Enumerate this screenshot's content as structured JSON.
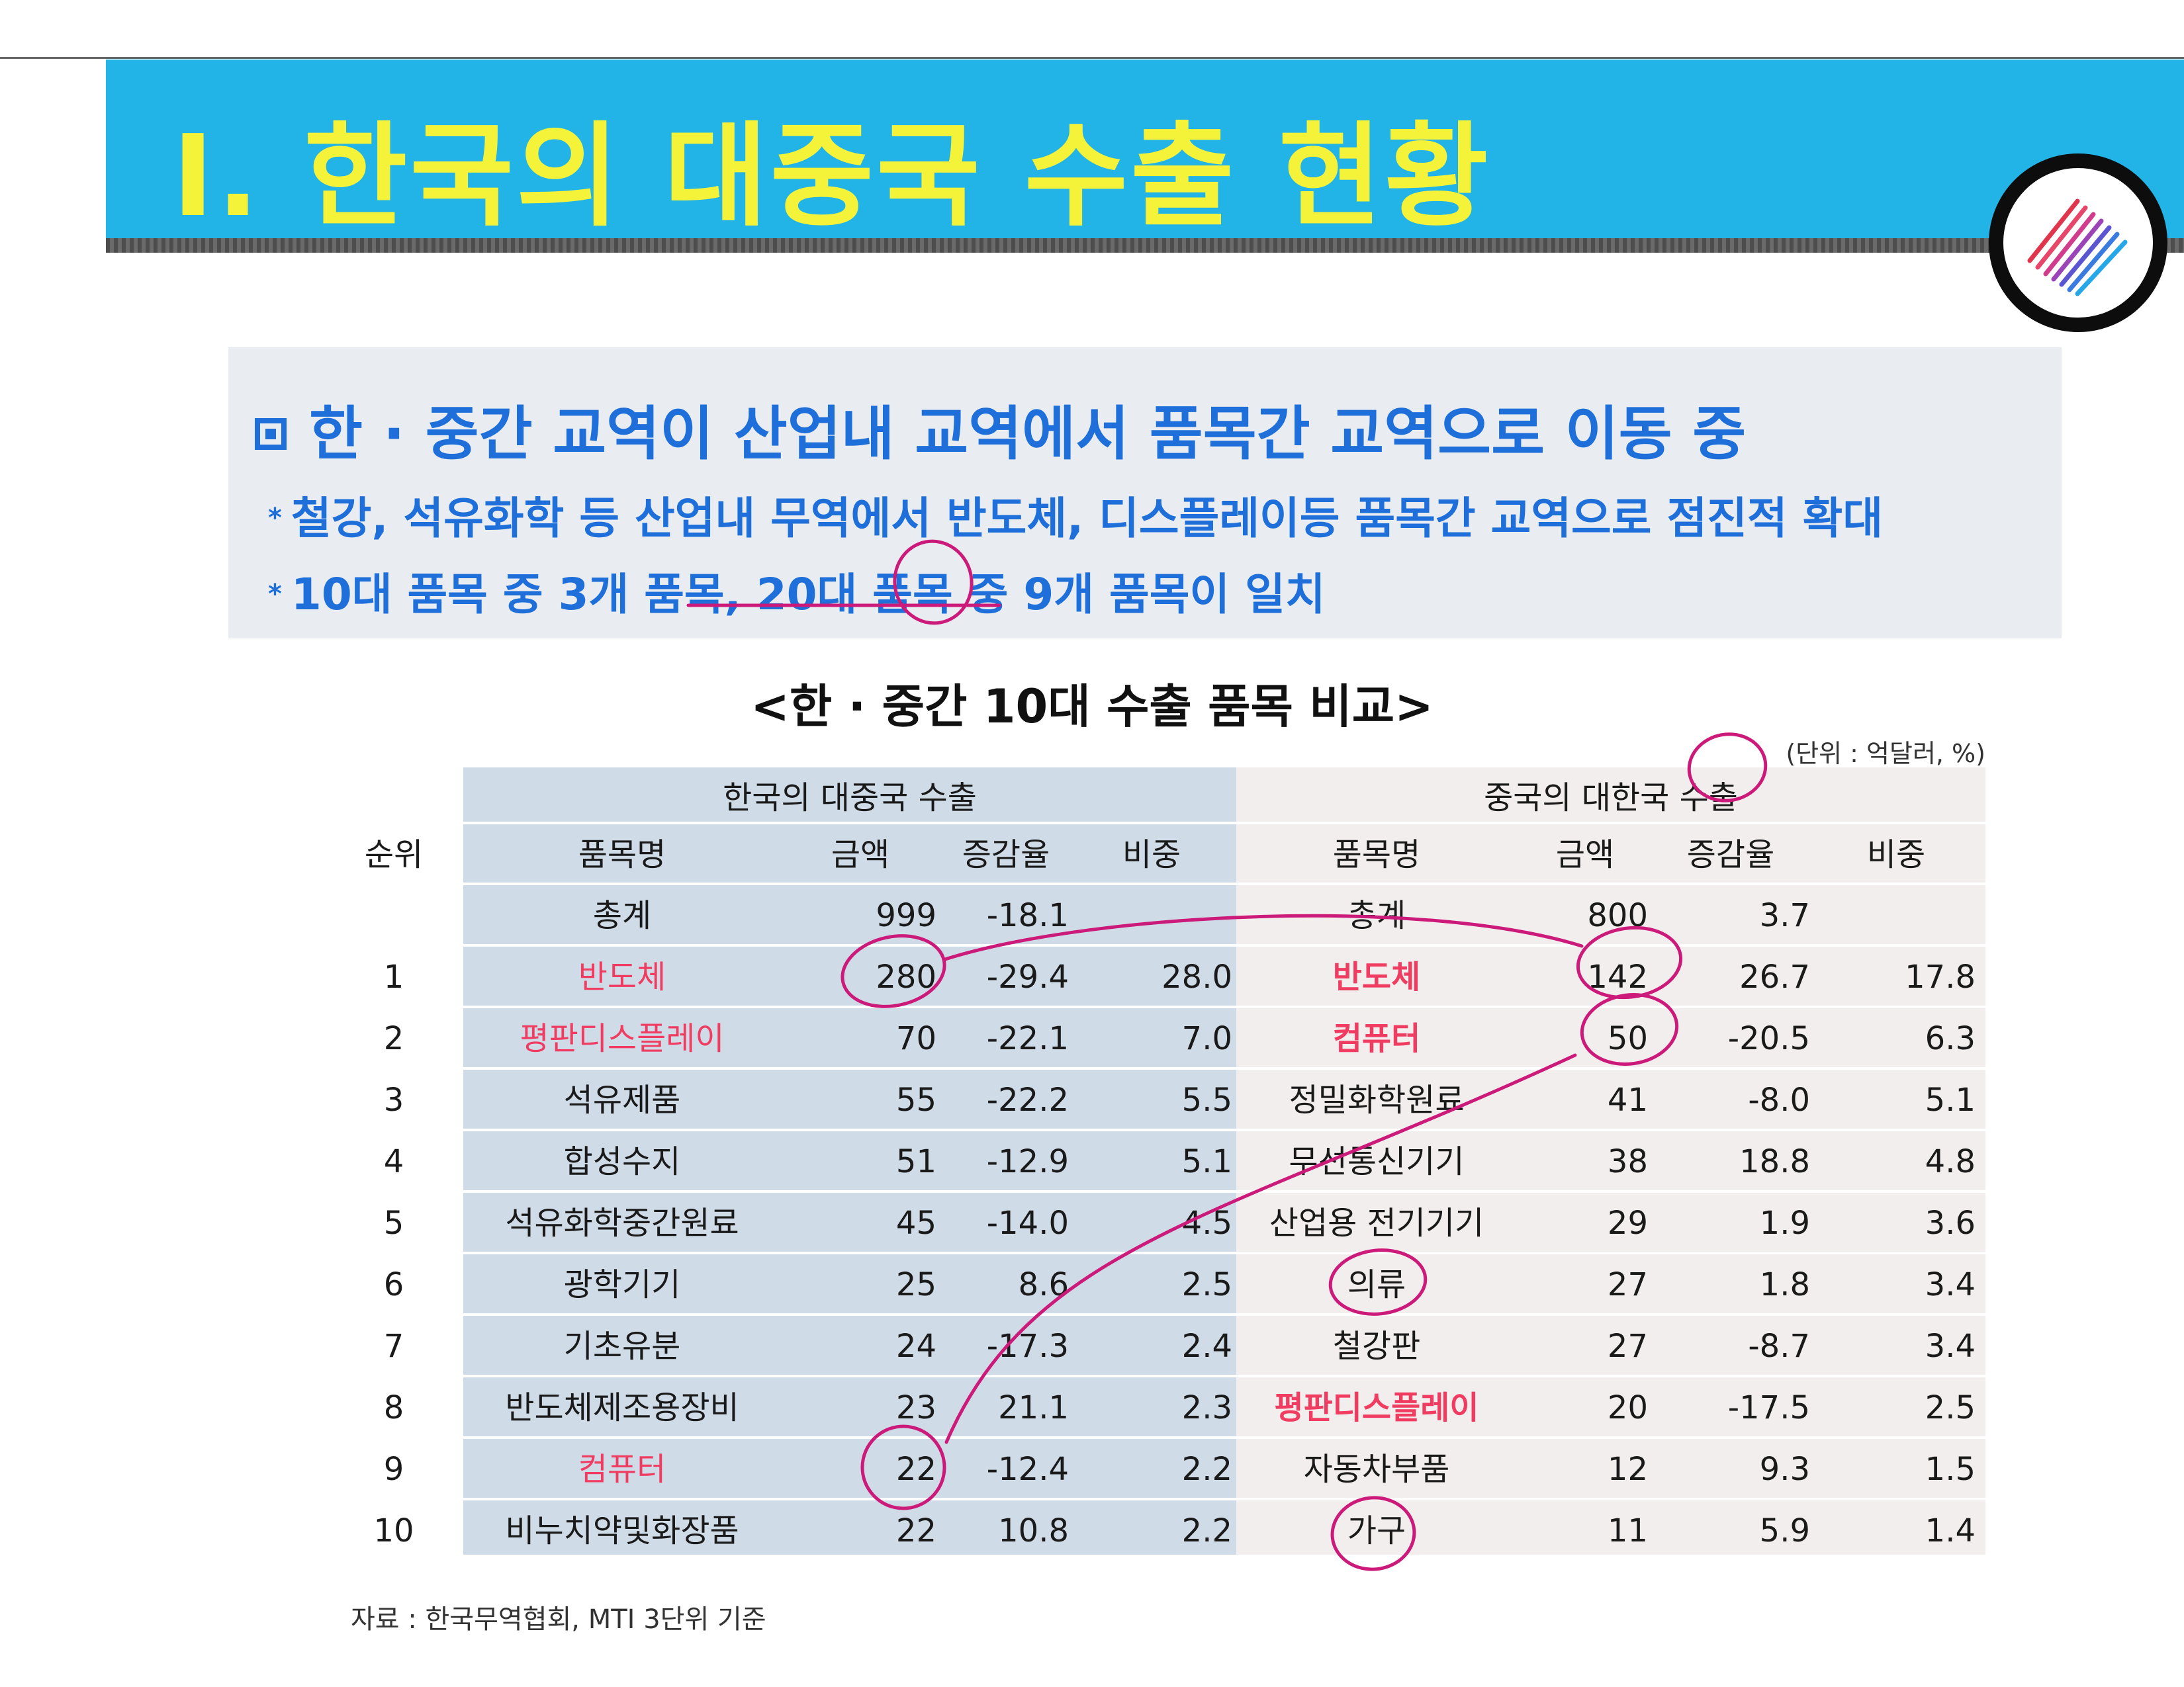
{
  "header": {
    "title": "Ⅰ. 한국의 대중국 수출 현황"
  },
  "summary": {
    "heading": "한 · 중간 교역이 산업내 교역에서 품목간 교역으로 이동 중",
    "bullets": [
      "철강, 석유화학 등 산업내 무역에서 반도체, 디스플레이등 품목간 교역으로 점진적 확대",
      "10대 품목 중 3개 품목, 20대 품목 중 9개 품목이 일치"
    ]
  },
  "table": {
    "title": "<한 · 중간 10대 수출 품목 비교>",
    "unit": "(단위 : 억달러, %)",
    "group_kr": "한국의 대중국 수출",
    "group_cn": "중국의 대한국 수출",
    "headers": {
      "rank": "순위",
      "name": "품목명",
      "amount": "금액",
      "change": "증감율",
      "share": "비중"
    },
    "rows": [
      {
        "rank": "",
        "kr": {
          "name": "총계",
          "amount": "999",
          "change": "-18.1",
          "share": ""
        },
        "cn": {
          "name": "총계",
          "amount": "800",
          "change": "3.7",
          "share": ""
        }
      },
      {
        "rank": "1",
        "kr": {
          "name": "반도체",
          "amount": "280",
          "change": "-29.4",
          "share": "28.0"
        },
        "cn": {
          "name": "반도체",
          "amount": "142",
          "change": "26.7",
          "share": "17.8"
        }
      },
      {
        "rank": "2",
        "kr": {
          "name": "평판디스플레이",
          "amount": "70",
          "change": "-22.1",
          "share": "7.0"
        },
        "cn": {
          "name": "컴퓨터",
          "amount": "50",
          "change": "-20.5",
          "share": "6.3"
        }
      },
      {
        "rank": "3",
        "kr": {
          "name": "석유제품",
          "amount": "55",
          "change": "-22.2",
          "share": "5.5"
        },
        "cn": {
          "name": "정밀화학원료",
          "amount": "41",
          "change": "-8.0",
          "share": "5.1"
        }
      },
      {
        "rank": "4",
        "kr": {
          "name": "합성수지",
          "amount": "51",
          "change": "-12.9",
          "share": "5.1"
        },
        "cn": {
          "name": "무선통신기기",
          "amount": "38",
          "change": "18.8",
          "share": "4.8"
        }
      },
      {
        "rank": "5",
        "kr": {
          "name": "석유화학중간원료",
          "amount": "45",
          "change": "-14.0",
          "share": "4.5"
        },
        "cn": {
          "name": "산업용 전기기기",
          "amount": "29",
          "change": "1.9",
          "share": "3.6"
        }
      },
      {
        "rank": "6",
        "kr": {
          "name": "광학기기",
          "amount": "25",
          "change": "8.6",
          "share": "2.5"
        },
        "cn": {
          "name": "의류",
          "amount": "27",
          "change": "1.8",
          "share": "3.4"
        }
      },
      {
        "rank": "7",
        "kr": {
          "name": "기초유분",
          "amount": "24",
          "change": "-17.3",
          "share": "2.4"
        },
        "cn": {
          "name": "철강판",
          "amount": "27",
          "change": "-8.7",
          "share": "3.4"
        }
      },
      {
        "rank": "8",
        "kr": {
          "name": "반도체제조용장비",
          "amount": "23",
          "change": "21.1",
          "share": "2.3"
        },
        "cn": {
          "name": "평판디스플레이",
          "amount": "20",
          "change": "-17.5",
          "share": "2.5"
        }
      },
      {
        "rank": "9",
        "kr": {
          "name": "컴퓨터",
          "amount": "22",
          "change": "-12.4",
          "share": "2.2"
        },
        "cn": {
          "name": "자동차부품",
          "amount": "12",
          "change": "9.3",
          "share": "1.5"
        }
      },
      {
        "rank": "10",
        "kr": {
          "name": "비누치약및화장품",
          "amount": "22",
          "change": "10.8",
          "share": "2.2"
        },
        "cn": {
          "name": "가구",
          "amount": "11",
          "change": "5.9",
          "share": "1.4"
        }
      }
    ],
    "source": "자료 : 한국무역협회, MTI 3단위 기준"
  },
  "colors": {
    "banner": "#22b4e6",
    "banner_text": "#f5f23a",
    "summary_text": "#1e6fd9",
    "highlight": "#f03c61",
    "annotation": "#cc1a7a"
  },
  "icons": {
    "logo": "logo-stripes-icon",
    "square_bullet": "square-bullet-icon"
  }
}
